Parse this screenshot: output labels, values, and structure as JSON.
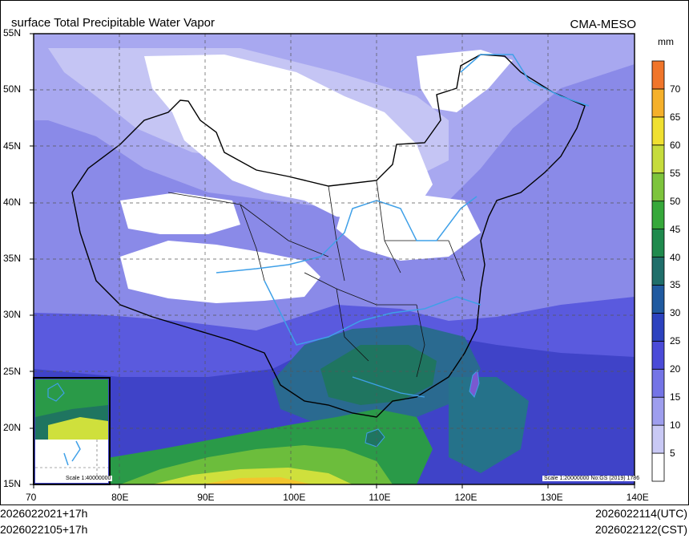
{
  "title": "surface Total Precipitable Water Vapor",
  "producer": "CMA-MESO",
  "legend": {
    "unit": "mm",
    "levels": [
      "5",
      "10",
      "15",
      "20",
      "25",
      "30",
      "35",
      "40",
      "45",
      "50",
      "55",
      "60",
      "65",
      "70"
    ],
    "colors": [
      "#ffffff",
      "#c9c9f5",
      "#9e9eee",
      "#7474e6",
      "#4b4bd8",
      "#2c42bf",
      "#205aa0",
      "#1f6e6a",
      "#1f8a4d",
      "#36a83a",
      "#7dc43c",
      "#c6dc3c",
      "#f0e030",
      "#f5b02a",
      "#f0752a"
    ]
  },
  "axes": {
    "lat_labels": [
      "55N",
      "50N",
      "45N",
      "40N",
      "35N",
      "30N",
      "25N",
      "20N",
      "15N"
    ],
    "lon_labels": [
      "70",
      "80E",
      "90E",
      "100E",
      "110E",
      "120E",
      "130E",
      "140E"
    ]
  },
  "inset_scale": "Scale 1:40000000",
  "map_scale": "Scale 1:20000000 No:GS (2019) 1786",
  "footer": {
    "left_line1": "2026022021+17h",
    "left_line2": "2026022105+17h",
    "right_line1": "2026022114(UTC)",
    "right_line2": "2026022122(CST)"
  },
  "icons": [
    "china-boundary",
    "river-network",
    "south-china-sea-inset"
  ]
}
